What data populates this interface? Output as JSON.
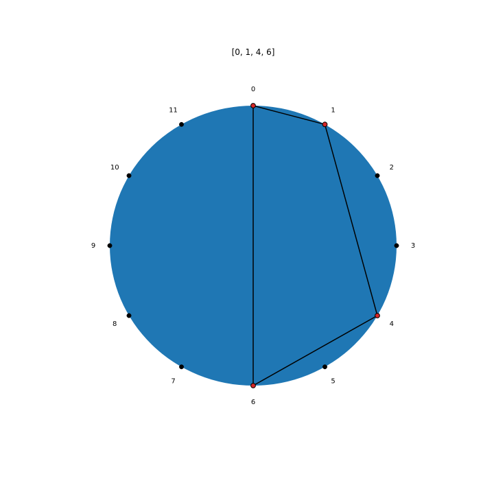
{
  "title": "[0, 1, 4, 6]",
  "points": [
    "0",
    "1",
    "2",
    "3",
    "4",
    "5",
    "6",
    "7",
    "8",
    "9",
    "10",
    "11"
  ],
  "selected": [
    0,
    1,
    4,
    6
  ],
  "colors": {
    "disk": "#1f77b4",
    "point": "#000000",
    "selected_point": "#d62728",
    "polygon_edge": "#000000",
    "background": "#ffffff"
  }
}
